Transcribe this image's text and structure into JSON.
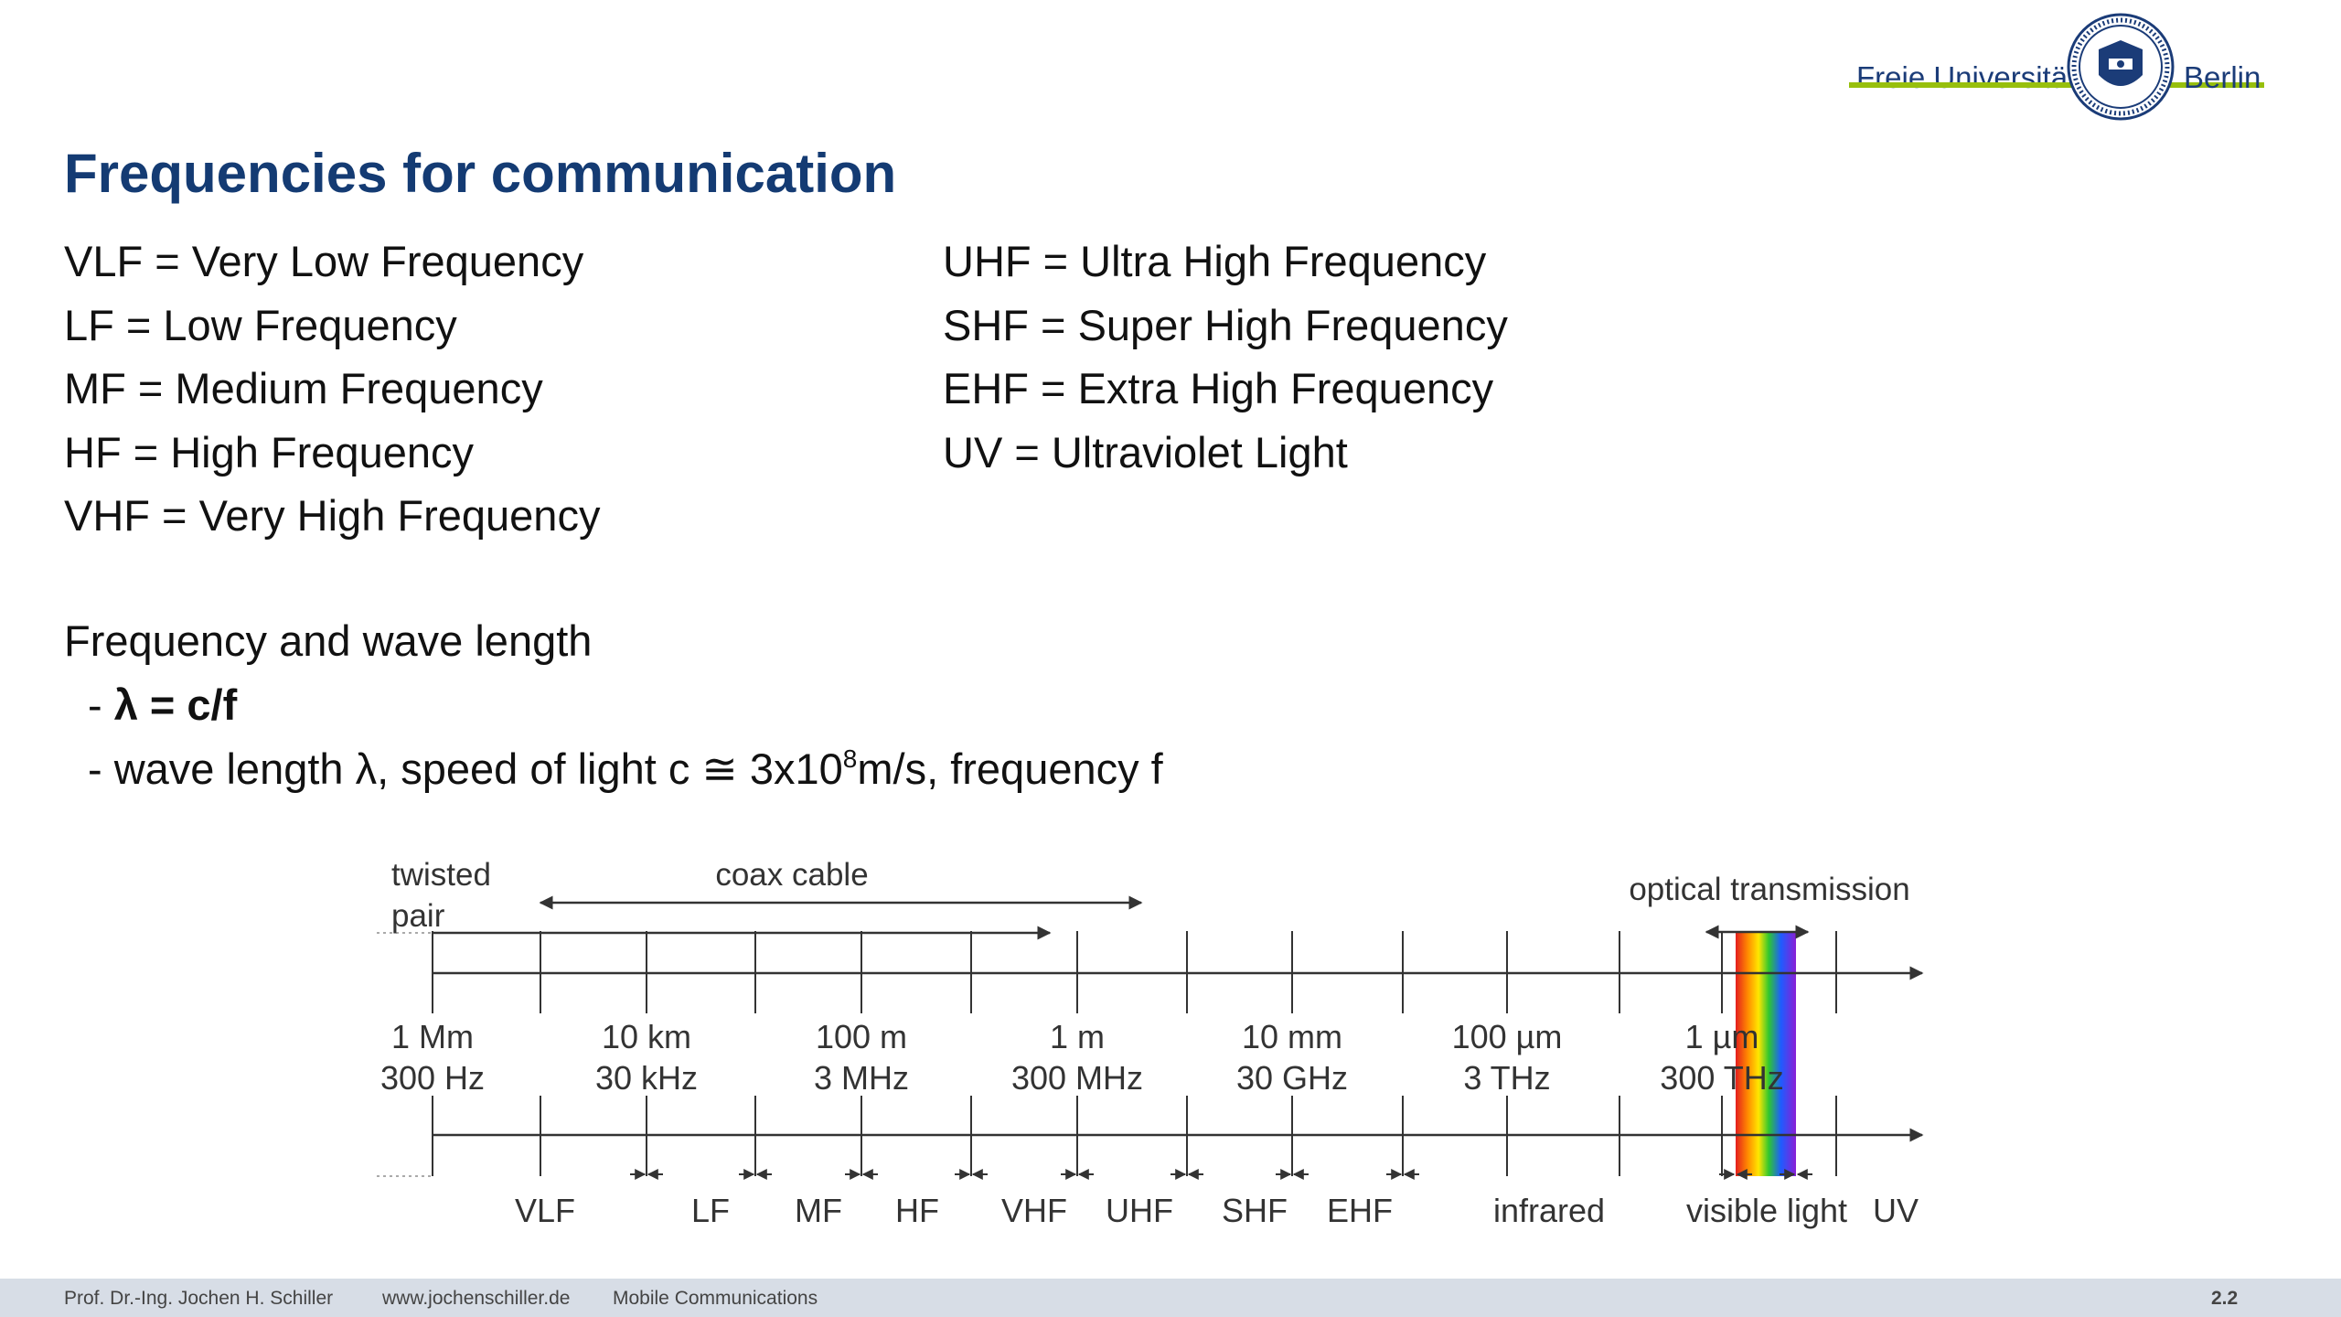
{
  "header": {
    "logo_text_left": "Freie Universität",
    "logo_text_right": "Berlin"
  },
  "title": "Frequencies for communication",
  "abbreviations": {
    "left": [
      "VLF = Very Low Frequency",
      "LF = Low Frequency",
      "MF = Medium Frequency",
      "HF = High Frequency",
      "VHF = Very High Frequency"
    ],
    "right": [
      "UHF = Ultra High Frequency",
      "SHF = Super High Frequency",
      "EHF = Extra High Frequency",
      "UV = Ultraviolet Light"
    ]
  },
  "section": {
    "heading": "Frequency and wave length",
    "formula_prefix": "- ",
    "formula": "λ = c/f",
    "bullet2_part1": "- wave length λ, speed of light c ≅ 3x10",
    "bullet2_exp": "8",
    "bullet2_part2": "m/s, frequency f"
  },
  "diagram": {
    "labels": {
      "twisted_pair_line1": "twisted",
      "twisted_pair_line2": "pair",
      "coax": "coax cable",
      "optical": "optical transmission"
    },
    "scale": [
      {
        "wavelength": "1 Mm",
        "frequency": "300 Hz"
      },
      {
        "wavelength": "10 km",
        "frequency": "30 kHz"
      },
      {
        "wavelength": "100 m",
        "frequency": "3 MHz"
      },
      {
        "wavelength": "1 m",
        "frequency": "300 MHz"
      },
      {
        "wavelength": "10 mm",
        "frequency": "30 GHz"
      },
      {
        "wavelength": "100 µm",
        "frequency": "3 THz"
      },
      {
        "wavelength": "1 µm",
        "frequency": "300 THz"
      }
    ],
    "bands": [
      "VLF",
      "LF",
      "MF",
      "HF",
      "VHF",
      "UHF",
      "SHF",
      "EHF",
      "infrared",
      "visible light",
      "UV"
    ]
  },
  "footer": {
    "author": "Prof. Dr.-Ing. Jochen H. Schiller",
    "website": "www.jochenschiller.de",
    "course": "Mobile Communications",
    "page": "2.2"
  }
}
